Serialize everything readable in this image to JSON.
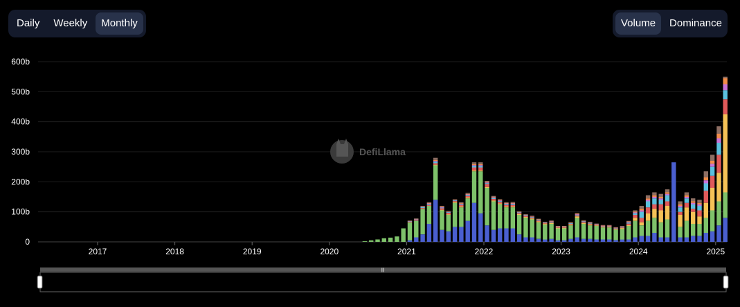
{
  "period_tabs": [
    {
      "label": "Daily",
      "active": false
    },
    {
      "label": "Weekly",
      "active": false
    },
    {
      "label": "Monthly",
      "active": true
    }
  ],
  "metric_tabs": [
    {
      "label": "Volume",
      "active": true
    },
    {
      "label": "Dominance",
      "active": false
    }
  ],
  "watermark": "DefiLlama",
  "colors": {
    "background": "#000000",
    "panel": "#141a2b",
    "active_tab": "#28324a",
    "series": [
      "#4a5fd0",
      "#7ec26a",
      "#f5c257",
      "#e05a5a",
      "#5bc0de",
      "#c774d8",
      "#f28c4a",
      "#8d6e63"
    ]
  },
  "chart_data": {
    "type": "bar",
    "stacked": true,
    "ylim": [
      0,
      600
    ],
    "yticks": [
      "0",
      "100b",
      "200b",
      "300b",
      "400b",
      "500b",
      "600b"
    ],
    "xticks": [
      "2017",
      "2018",
      "2019",
      "2020",
      "2021",
      "2022",
      "2023",
      "2024",
      "2025"
    ],
    "grid": true,
    "categories": [
      "2020-06",
      "2020-07",
      "2020-08",
      "2020-09",
      "2020-10",
      "2020-11",
      "2020-12",
      "2021-01",
      "2021-02",
      "2021-03",
      "2021-04",
      "2021-05",
      "2021-06",
      "2021-07",
      "2021-08",
      "2021-09",
      "2021-10",
      "2021-11",
      "2021-12",
      "2022-01",
      "2022-02",
      "2022-03",
      "2022-04",
      "2022-05",
      "2022-06",
      "2022-07",
      "2022-08",
      "2022-09",
      "2022-10",
      "2022-11",
      "2022-12",
      "2023-01",
      "2023-02",
      "2023-03",
      "2023-04",
      "2023-05",
      "2023-06",
      "2023-07",
      "2023-08",
      "2023-09",
      "2023-10",
      "2023-11",
      "2023-12",
      "2024-01",
      "2024-02",
      "2024-03",
      "2024-04",
      "2024-05",
      "2024-06",
      "2024-07",
      "2024-08",
      "2024-09",
      "2024-10",
      "2024-11",
      "2024-12",
      "2025-01",
      "2025-02"
    ],
    "series": [
      {
        "values": [
          0,
          0,
          0,
          0,
          0,
          0,
          0,
          5,
          15,
          25,
          60,
          140,
          40,
          35,
          50,
          50,
          70,
          130,
          95,
          55,
          40,
          45,
          45,
          45,
          25,
          15,
          15,
          10,
          8,
          10,
          5,
          5,
          10,
          15,
          10,
          10,
          8,
          8,
          8,
          6,
          8,
          8,
          15,
          20,
          20,
          30,
          15,
          15,
          265,
          15,
          15,
          20,
          20,
          30,
          35,
          55,
          80
        ]
      },
      {
        "values": [
          2,
          5,
          8,
          12,
          14,
          18,
          45,
          60,
          55,
          85,
          60,
          115,
          65,
          55,
          80,
          65,
          75,
          105,
          140,
          125,
          95,
          80,
          70,
          70,
          65,
          65,
          60,
          55,
          50,
          50,
          40,
          40,
          45,
          65,
          50,
          45,
          45,
          40,
          40,
          35,
          35,
          45,
          55,
          35,
          50,
          50,
          50,
          60,
          0,
          35,
          55,
          40,
          40,
          50,
          70,
          80,
          85
        ]
      },
      {
        "values": [
          0,
          0,
          0,
          0,
          0,
          0,
          0,
          0,
          0,
          0,
          0,
          2,
          2,
          2,
          3,
          3,
          3,
          3,
          3,
          3,
          3,
          3,
          3,
          3,
          3,
          3,
          3,
          3,
          3,
          3,
          2,
          2,
          3,
          5,
          3,
          3,
          2,
          2,
          2,
          2,
          3,
          3,
          10,
          10,
          25,
          30,
          40,
          45,
          0,
          40,
          45,
          40,
          25,
          50,
          75,
          95,
          260
        ]
      },
      {
        "values": [
          0,
          0,
          0,
          0,
          0,
          0,
          0,
          2,
          2,
          3,
          3,
          5,
          5,
          5,
          3,
          5,
          5,
          10,
          10,
          10,
          5,
          5,
          5,
          5,
          3,
          3,
          3,
          3,
          2,
          2,
          2,
          2,
          2,
          3,
          3,
          3,
          2,
          2,
          2,
          2,
          2,
          5,
          10,
          15,
          20,
          15,
          20,
          15,
          0,
          10,
          15,
          10,
          20,
          40,
          40,
          60,
          50
        ]
      },
      {
        "values": [
          0,
          0,
          0,
          0,
          0,
          0,
          0,
          1,
          2,
          3,
          3,
          5,
          2,
          2,
          2,
          2,
          3,
          5,
          5,
          3,
          3,
          3,
          3,
          3,
          2,
          2,
          2,
          2,
          1,
          2,
          1,
          1,
          2,
          2,
          2,
          2,
          1,
          1,
          1,
          1,
          1,
          3,
          5,
          20,
          20,
          20,
          15,
          20,
          0,
          15,
          15,
          15,
          15,
          25,
          30,
          40,
          30
        ]
      },
      {
        "values": [
          0,
          0,
          0,
          0,
          0,
          0,
          0,
          1,
          1,
          1,
          2,
          3,
          2,
          1,
          1,
          2,
          2,
          3,
          3,
          2,
          2,
          2,
          2,
          2,
          1,
          1,
          1,
          1,
          1,
          1,
          1,
          1,
          1,
          2,
          1,
          1,
          1,
          1,
          1,
          1,
          1,
          2,
          3,
          5,
          5,
          5,
          5,
          5,
          0,
          5,
          5,
          5,
          5,
          10,
          10,
          15,
          20
        ]
      },
      {
        "values": [
          0,
          0,
          0,
          0,
          0,
          0,
          0,
          1,
          1,
          1,
          2,
          3,
          2,
          1,
          1,
          2,
          2,
          3,
          3,
          2,
          2,
          2,
          2,
          2,
          1,
          1,
          1,
          1,
          1,
          1,
          1,
          1,
          1,
          2,
          1,
          1,
          1,
          1,
          1,
          1,
          1,
          2,
          3,
          5,
          5,
          5,
          5,
          5,
          0,
          5,
          5,
          5,
          5,
          10,
          10,
          15,
          20
        ]
      },
      {
        "values": [
          0,
          0,
          0,
          0,
          0,
          0,
          0,
          1,
          2,
          2,
          2,
          7,
          2,
          2,
          2,
          3,
          3,
          6,
          6,
          3,
          3,
          2,
          2,
          3,
          2,
          2,
          2,
          2,
          1,
          2,
          1,
          1,
          2,
          2,
          2,
          2,
          1,
          1,
          1,
          1,
          2,
          2,
          4,
          10,
          10,
          10,
          10,
          10,
          0,
          10,
          10,
          10,
          10,
          20,
          20,
          25,
          5
        ]
      }
    ]
  }
}
